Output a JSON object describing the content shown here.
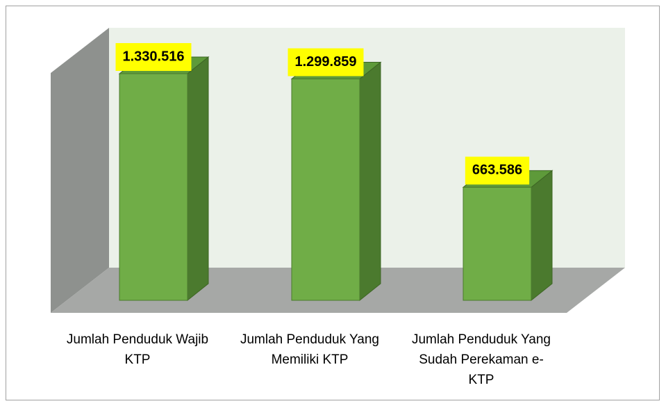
{
  "chart_data": {
    "type": "bar3d",
    "categories": [
      "Jumlah Penduduk Wajib KTP",
      "Jumlah Penduduk Yang Memiliki KTP",
      "Jumlah Penduduk Yang Sudah Perekaman e-KTP"
    ],
    "values": [
      1330516,
      1299859,
      663586
    ],
    "value_labels": [
      "1.330.516",
      "1.299.859",
      "663.586"
    ],
    "color": "#70ad47"
  }
}
